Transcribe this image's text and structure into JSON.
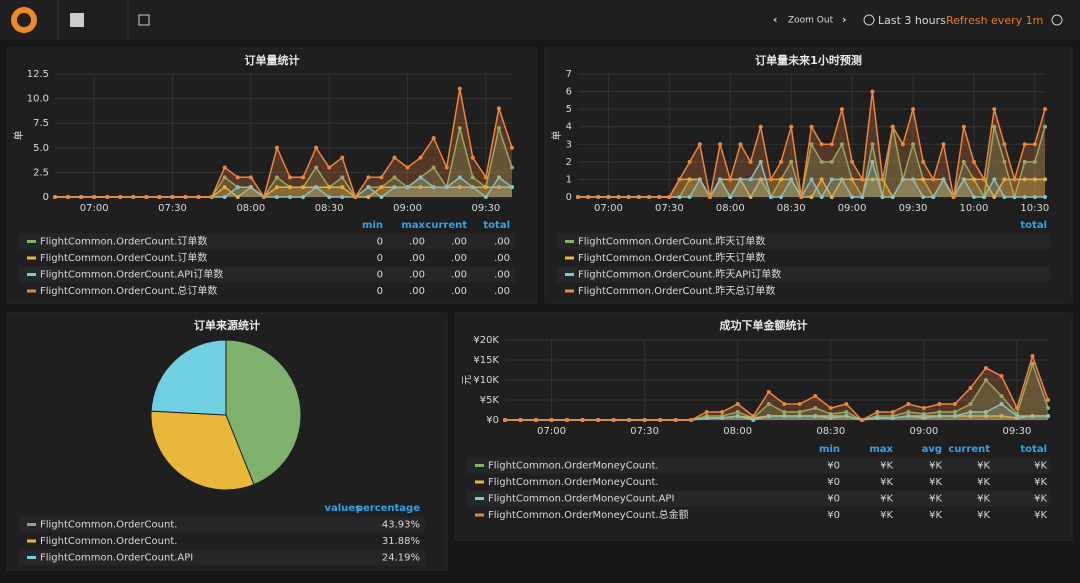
{
  "topbar": {
    "zoom": "Zoom Out",
    "range": "Last 3 hours",
    "refresh": "Refresh every 1m"
  },
  "chart_data": [
    {
      "type": "line",
      "title": "订单量统计",
      "ylabel": "单",
      "x": [
        "06:45",
        "06:50",
        "06:55",
        "07:00",
        "07:05",
        "07:10",
        "07:15",
        "07:20",
        "07:25",
        "07:30",
        "07:35",
        "07:40",
        "07:45",
        "07:50",
        "07:55",
        "08:00",
        "08:05",
        "08:10",
        "08:15",
        "08:20",
        "08:25",
        "08:30",
        "08:35",
        "08:40",
        "08:45",
        "08:50",
        "08:55",
        "09:00",
        "09:05",
        "09:10",
        "09:15",
        "09:20",
        "09:25",
        "09:30",
        "09:35",
        "09:40"
      ],
      "xticks": [
        "07:00",
        "07:30",
        "08:00",
        "08:30",
        "09:00",
        "09:30"
      ],
      "ylim": [
        0,
        12.5
      ],
      "yticks": [
        0,
        2.5,
        {
          "value": 5,
          "label": "5.0"
        },
        7.5,
        {
          "value": 10,
          "label": "10.0"
        },
        12.5
      ],
      "series": [
        {
          "name": "FlightCommon.OrderCount.订单数",
          "color": "#7eb26d",
          "values": [
            0,
            0,
            0,
            0,
            0,
            0,
            0,
            0,
            0,
            0,
            0,
            0,
            0,
            2,
            1,
            1,
            0,
            2,
            1,
            1,
            3,
            1,
            2,
            0,
            1,
            1,
            2,
            1,
            2,
            3,
            1,
            7,
            2,
            1,
            7,
            3
          ]
        },
        {
          "name": "FlightCommon.OrderCount.订单数",
          "color": "#eab839",
          "values": [
            0,
            0,
            0,
            0,
            0,
            0,
            0,
            0,
            0,
            0,
            0,
            0,
            0,
            1,
            0,
            1,
            0,
            1,
            1,
            1,
            1,
            1,
            1,
            0,
            0,
            1,
            1,
            1,
            1,
            1,
            1,
            1,
            1,
            1,
            1,
            1
          ]
        },
        {
          "name": "FlightCommon.OrderCount.API订单数",
          "color": "#6ed0e0",
          "values": [
            0,
            0,
            0,
            0,
            0,
            0,
            0,
            0,
            0,
            0,
            0,
            0,
            0,
            0,
            1,
            1,
            0,
            0,
            0,
            0,
            1,
            0,
            0,
            0,
            1,
            0,
            1,
            1,
            2,
            1,
            1,
            2,
            1,
            0,
            2,
            1
          ]
        },
        {
          "name": "FlightCommon.OrderCount.总订单数",
          "color": "#ef843c",
          "values": [
            0,
            0,
            0,
            0,
            0,
            0,
            0,
            0,
            0,
            0,
            0,
            0,
            0,
            3,
            2,
            2,
            0,
            5,
            2,
            2,
            5,
            3,
            4,
            0,
            2,
            2,
            4,
            3,
            4,
            6,
            3,
            11,
            4,
            2,
            9,
            5
          ]
        }
      ],
      "legend": {
        "columns": [
          "min",
          "max",
          "current",
          "total"
        ],
        "rows": [
          [
            "0",
            ".00",
            ".00",
            ".00"
          ],
          [
            "0",
            ".00",
            ".00",
            ".00"
          ],
          [
            "0",
            ".00",
            ".00",
            ".00"
          ],
          [
            "0",
            ".00",
            ".00",
            ".00"
          ]
        ]
      }
    },
    {
      "type": "line",
      "title": "订单量未来1小时预测",
      "ylabel": "单",
      "x": [
        "06:45",
        "06:50",
        "06:55",
        "07:00",
        "07:05",
        "07:10",
        "07:15",
        "07:20",
        "07:25",
        "07:30",
        "07:35",
        "07:40",
        "07:45",
        "07:50",
        "07:55",
        "08:00",
        "08:05",
        "08:10",
        "08:15",
        "08:20",
        "08:25",
        "08:30",
        "08:35",
        "08:40",
        "08:45",
        "08:50",
        "08:55",
        "09:00",
        "09:05",
        "09:10",
        "09:15",
        "09:20",
        "09:25",
        "09:30",
        "09:35",
        "09:40",
        "09:45",
        "09:50",
        "09:55",
        "10:00",
        "10:05",
        "10:10",
        "10:15",
        "10:20",
        "10:25",
        "10:30",
        "10:35"
      ],
      "xticks": [
        "07:00",
        "07:30",
        "08:00",
        "08:30",
        "09:00",
        "09:30",
        "10:00",
        "10:30"
      ],
      "ylim": [
        0,
        7
      ],
      "yticks": [
        0,
        1,
        2,
        3,
        4,
        5,
        6,
        7
      ],
      "series": [
        {
          "name": "FlightCommon.OrderCount.昨天订单数",
          "color": "#7eb26d",
          "values": [
            0,
            0,
            0,
            0,
            0,
            0,
            0,
            0,
            0,
            0,
            0,
            1,
            1,
            0,
            1,
            0,
            1,
            1,
            1,
            0,
            1,
            2,
            0,
            3,
            2,
            2,
            3,
            1,
            0,
            3,
            0,
            4,
            1,
            3,
            1,
            0,
            1,
            0,
            2,
            1,
            0,
            4,
            2,
            0,
            2,
            2,
            4
          ]
        },
        {
          "name": "FlightCommon.OrderCount.昨天订单数",
          "color": "#eab839",
          "values": [
            0,
            0,
            0,
            0,
            0,
            0,
            0,
            0,
            0,
            0,
            1,
            1,
            1,
            0,
            1,
            1,
            1,
            0,
            1,
            1,
            1,
            1,
            0,
            0,
            1,
            0,
            1,
            1,
            1,
            1,
            1,
            0,
            1,
            1,
            1,
            1,
            1,
            0,
            1,
            1,
            1,
            0,
            1,
            1,
            1,
            1,
            1
          ]
        },
        {
          "name": "FlightCommon.OrderCount.昨天API订单数",
          "color": "#6ed0e0",
          "values": [
            0,
            0,
            0,
            0,
            0,
            0,
            0,
            0,
            0,
            0,
            0,
            0,
            1,
            0,
            1,
            0,
            1,
            1,
            2,
            0,
            0,
            1,
            0,
            1,
            0,
            1,
            1,
            0,
            0,
            2,
            0,
            0,
            1,
            1,
            0,
            0,
            1,
            0,
            1,
            0,
            0,
            1,
            0,
            0,
            0,
            0,
            0
          ]
        },
        {
          "name": "FlightCommon.OrderCount.昨天总订单数",
          "color": "#ef843c",
          "values": [
            0,
            0,
            0,
            0,
            0,
            0,
            0,
            0,
            0,
            0,
            1,
            2,
            3,
            0,
            3,
            1,
            3,
            2,
            4,
            1,
            2,
            4,
            0,
            4,
            3,
            3,
            5,
            2,
            1,
            6,
            1,
            4,
            3,
            5,
            2,
            1,
            3,
            0,
            4,
            2,
            1,
            5,
            3,
            1,
            3,
            3,
            5
          ]
        }
      ],
      "legend": {
        "columns": [
          "total"
        ]
      }
    },
    {
      "type": "pie",
      "title": "订单来源统计",
      "labels": [
        "FlightCommon.OrderCount.",
        "FlightCommon.OrderCount.",
        "FlightCommon.OrderCount.API"
      ],
      "values": [
        43.93,
        31.88,
        24.19
      ],
      "value_labels": [
        "43.93%",
        "31.88%",
        "24.19%"
      ],
      "colors": [
        "#7eb26d",
        "#eab839",
        "#6ed0e0"
      ],
      "legend": {
        "columns": [
          "values",
          "percentage"
        ]
      }
    },
    {
      "type": "line",
      "title": "成功下单金额统计",
      "ylabel": "元",
      "x": [
        "06:45",
        "06:50",
        "06:55",
        "07:00",
        "07:05",
        "07:10",
        "07:15",
        "07:20",
        "07:25",
        "07:30",
        "07:35",
        "07:40",
        "07:45",
        "07:50",
        "07:55",
        "08:00",
        "08:05",
        "08:10",
        "08:15",
        "08:20",
        "08:25",
        "08:30",
        "08:35",
        "08:40",
        "08:45",
        "08:50",
        "08:55",
        "09:00",
        "09:05",
        "09:10",
        "09:15",
        "09:20",
        "09:25",
        "09:30",
        "09:35",
        "09:40"
      ],
      "xticks": [
        "07:00",
        "07:30",
        "08:00",
        "08:30",
        "09:00",
        "09:30"
      ],
      "ylim": [
        0,
        20000
      ],
      "yticks": [
        {
          "value": 0,
          "label": "¥0"
        },
        {
          "value": 5000,
          "label": "¥5K"
        },
        {
          "value": 10000,
          "label": "¥10K"
        },
        {
          "value": 15000,
          "label": "¥15K"
        },
        {
          "value": 20000,
          "label": "¥20K"
        }
      ],
      "series": [
        {
          "name": "FlightCommon.OrderMoneyCount.",
          "color": "#7eb26d",
          "values": [
            0,
            0,
            0,
            0,
            0,
            0,
            0,
            0,
            0,
            0,
            0,
            0,
            0,
            1000,
            1000,
            2000,
            500,
            4000,
            2000,
            2000,
            3000,
            1500,
            2000,
            0,
            1000,
            1000,
            2000,
            1500,
            2000,
            2000,
            4000,
            10000,
            6000,
            1500,
            14000,
            3000
          ]
        },
        {
          "name": "FlightCommon.OrderMoneyCount.",
          "color": "#eab839",
          "values": [
            0,
            0,
            0,
            0,
            0,
            0,
            0,
            0,
            0,
            0,
            0,
            0,
            0,
            500,
            500,
            1000,
            500,
            1000,
            1000,
            1000,
            1000,
            500,
            1000,
            0,
            500,
            500,
            1000,
            500,
            1000,
            1000,
            1000,
            1000,
            1000,
            500,
            1000,
            1000
          ]
        },
        {
          "name": "FlightCommon.OrderMoneyCount.API",
          "color": "#6ed0e0",
          "values": [
            0,
            0,
            0,
            0,
            0,
            0,
            0,
            0,
            0,
            0,
            0,
            0,
            0,
            500,
            500,
            1000,
            0,
            1000,
            1000,
            1000,
            1000,
            1000,
            1000,
            0,
            500,
            500,
            1000,
            1000,
            1000,
            1000,
            2000,
            2000,
            4000,
            1000,
            1000,
            1000
          ]
        },
        {
          "name": "FlightCommon.OrderMoneyCount.总金额",
          "color": "#ef843c",
          "values": [
            0,
            0,
            0,
            0,
            0,
            0,
            0,
            0,
            0,
            0,
            0,
            0,
            0,
            2000,
            2000,
            4000,
            1000,
            7000,
            4000,
            4000,
            6000,
            3000,
            4000,
            0,
            2000,
            2000,
            4000,
            3000,
            4000,
            4000,
            8000,
            13000,
            11000,
            3000,
            16000,
            5000
          ]
        }
      ],
      "legend": {
        "columns": [
          "min",
          "max",
          "avg",
          "current",
          "total"
        ],
        "rows": [
          [
            "¥0",
            "¥K",
            "¥K",
            "¥K",
            "¥K"
          ],
          [
            "¥0",
            "¥K",
            "¥K",
            "¥K",
            "¥K"
          ],
          [
            "¥0",
            "¥K",
            "¥K",
            "¥K",
            "¥K"
          ],
          [
            "¥0",
            "¥K",
            "¥K",
            "¥K",
            "¥K"
          ]
        ]
      }
    }
  ]
}
